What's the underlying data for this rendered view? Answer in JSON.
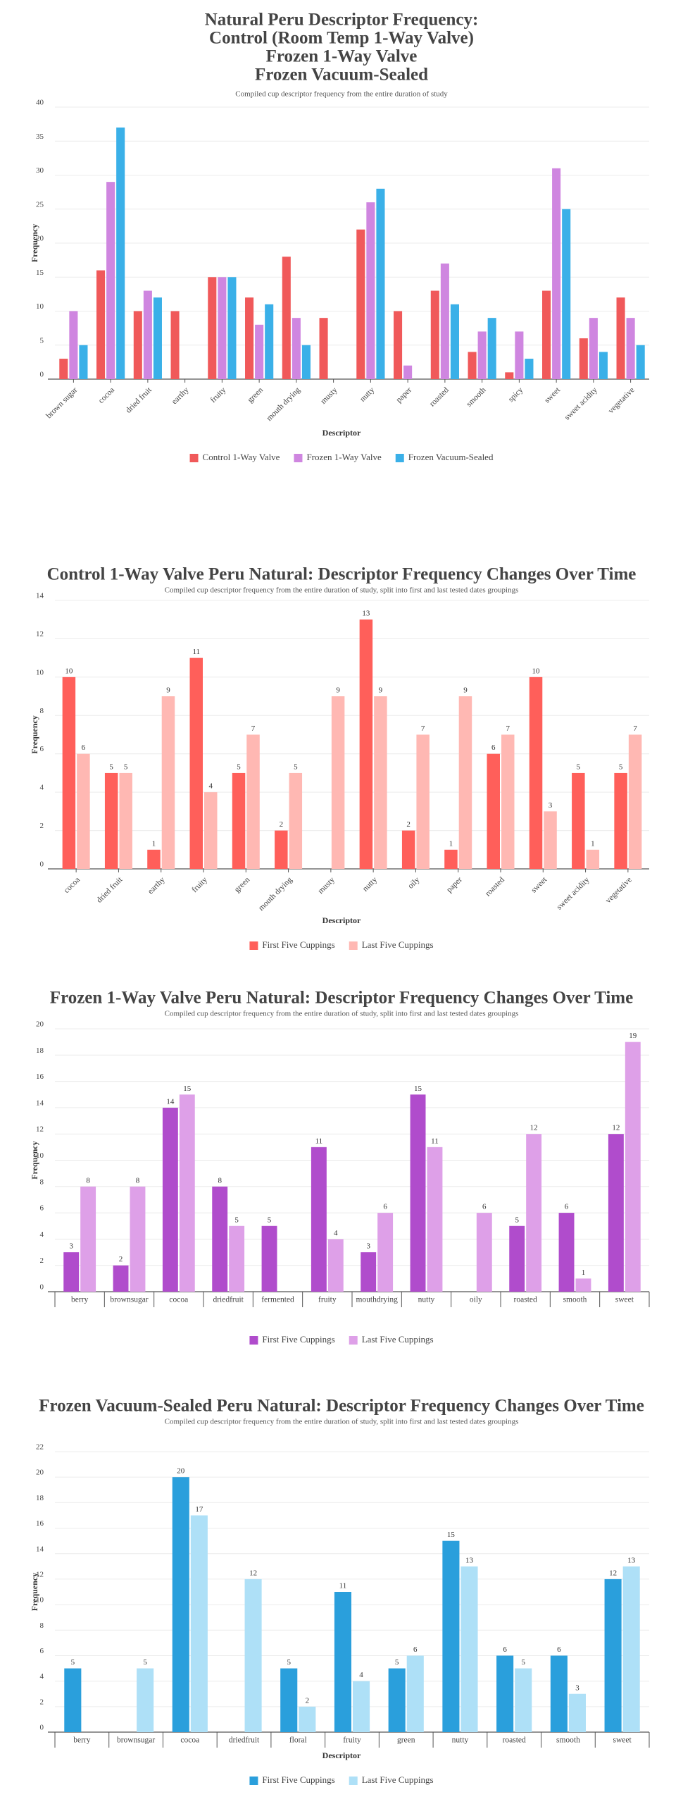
{
  "chart_data": [
    {
      "type": "bar",
      "title": [
        "Natural Peru Descriptor Frequency:",
        "Control (Room Temp 1-Way Valve)",
        "Frozen 1-Way Valve",
        "Frozen Vacuum-Sealed"
      ],
      "subtitle": "Compiled cup descriptor frequency from the entire duration of study",
      "xlabel": "Descriptor",
      "ylabel": "Frequency",
      "categories": [
        "brown sugar",
        "cocoa",
        "dried fruit",
        "earthy",
        "fruity",
        "green",
        "mouth drying",
        "musty",
        "nutty",
        "paper",
        "roasted",
        "smooth",
        "spicy",
        "sweet",
        "sweet acidity",
        "vegetative"
      ],
      "series": [
        {
          "name": "Control 1-Way Valve",
          "color": "#f0595a",
          "values": [
            3,
            16,
            10,
            10,
            15,
            12,
            18,
            9,
            22,
            10,
            13,
            4,
            1,
            13,
            6,
            12
          ]
        },
        {
          "name": "Frozen 1-Way Valve",
          "color": "#cf86e0",
          "values": [
            10,
            29,
            13,
            null,
            15,
            8,
            9,
            null,
            26,
            2,
            17,
            7,
            7,
            31,
            9,
            9
          ]
        },
        {
          "name": "Frozen Vacuum-Sealed",
          "color": "#3ab0e8",
          "values": [
            5,
            37,
            12,
            null,
            15,
            11,
            5,
            null,
            28,
            null,
            11,
            9,
            3,
            25,
            4,
            5
          ]
        }
      ],
      "ylim": [
        0,
        40
      ],
      "yticks": [
        0,
        5,
        10,
        15,
        20,
        25,
        30,
        35,
        40
      ],
      "grid": true,
      "legend": "bottom",
      "data_labels": false
    },
    {
      "type": "bar",
      "title": "Control 1-Way Valve Peru Natural: Descriptor Frequency Changes Over Time",
      "subtitle": "Compiled cup descriptor frequency from the entire duration of study, split into first and last tested dates groupings",
      "xlabel": "Descriptor",
      "ylabel": "Frequency",
      "categories": [
        "cocoa",
        "dried fruit",
        "earthy",
        "fruity",
        "green",
        "mouth drying",
        "musty",
        "nutty",
        "oily",
        "paper",
        "roasted",
        "sweet",
        "sweet acidity",
        "vegetative"
      ],
      "series": [
        {
          "name": "First Five Cuppings",
          "color": "#ff5f5a",
          "values": [
            10,
            5,
            1,
            11,
            5,
            2,
            null,
            13,
            2,
            1,
            6,
            10,
            5,
            5
          ]
        },
        {
          "name": "Last Five Cuppings",
          "color": "#ffb8b3",
          "values": [
            6,
            5,
            9,
            4,
            7,
            5,
            9,
            9,
            7,
            9,
            7,
            3,
            1,
            7
          ]
        }
      ],
      "ylim": [
        0,
        14
      ],
      "yticks": [
        0,
        2,
        4,
        6,
        8,
        10,
        12,
        14
      ],
      "grid": true,
      "legend": "bottom",
      "data_labels": true
    },
    {
      "type": "bar",
      "title": "Frozen 1-Way Valve Peru Natural: Descriptor Frequency Changes Over Time",
      "subtitle": "Compiled cup descriptor frequency from the entire duration of study, split into first and last tested dates groupings",
      "ylabel": "Frequency",
      "categories": [
        "berry",
        "brownsugar",
        "cocoa",
        "driedfruit",
        "fermented",
        "fruity",
        "mouthdrying",
        "nutty",
        "oily",
        "roasted",
        "smooth",
        "sweet"
      ],
      "series": [
        {
          "name": "First Five Cuppings",
          "color": "#b04ccc",
          "values": [
            3,
            2,
            14,
            8,
            5,
            11,
            3,
            15,
            null,
            5,
            6,
            12
          ]
        },
        {
          "name": "Last Five Cuppings",
          "color": "#dea0e8",
          "values": [
            8,
            8,
            15,
            5,
            null,
            4,
            6,
            11,
            6,
            12,
            1,
            19
          ]
        }
      ],
      "ylim": [
        0,
        20
      ],
      "yticks": [
        0,
        2,
        4,
        6,
        8,
        10,
        12,
        14,
        16,
        18,
        20
      ],
      "grid": true,
      "legend": "bottom",
      "data_labels": true
    },
    {
      "type": "bar",
      "title": "Frozen Vacuum-Sealed Peru Natural: Descriptor Frequency Changes Over Time",
      "subtitle": "Compiled cup descriptor frequency from the entire duration of study, split into first and last tested dates groupings",
      "xlabel": "Descriptor",
      "ylabel": "Frequency",
      "categories": [
        "berry",
        "brownsugar",
        "cocoa",
        "driedfruit",
        "floral",
        "fruity",
        "green",
        "nutty",
        "roasted",
        "smooth",
        "sweet"
      ],
      "series": [
        {
          "name": "First Five Cuppings",
          "color": "#2a9fdc",
          "values": [
            5,
            null,
            20,
            null,
            5,
            11,
            5,
            15,
            6,
            6,
            12
          ]
        },
        {
          "name": "Last Five Cuppings",
          "color": "#aee0f7",
          "values": [
            null,
            5,
            17,
            12,
            2,
            4,
            6,
            13,
            5,
            3,
            13
          ]
        }
      ],
      "ylim": [
        0,
        22
      ],
      "yticks": [
        0,
        2,
        4,
        6,
        8,
        10,
        12,
        14,
        16,
        18,
        20,
        22
      ],
      "grid": true,
      "legend": "bottom",
      "data_labels": true
    }
  ]
}
